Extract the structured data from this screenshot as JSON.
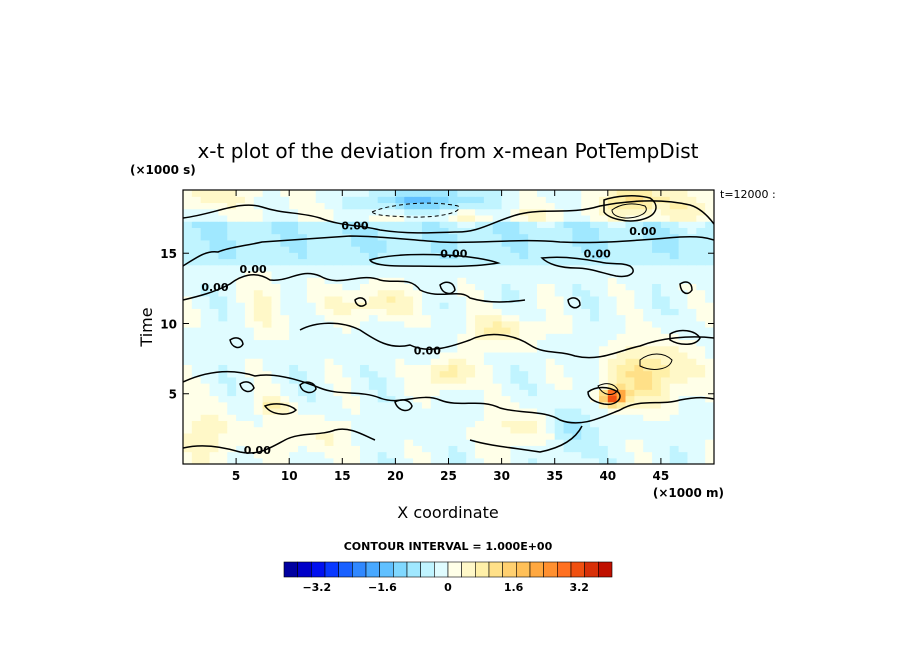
{
  "chart_data": {
    "type": "heatmap",
    "title": "x-t plot of the deviation from x-mean PotTempDist",
    "xlabel": "X coordinate",
    "ylabel": "Time",
    "x_units": "(×1000 m)",
    "y_units": "(×1000 s)",
    "corner_note": "t=12000 :",
    "contour_interval_text": "CONTOUR INTERVAL = 1.000E+00",
    "xlim": [
      0,
      50
    ],
    "ylim": [
      0,
      19.5
    ],
    "xticks": [
      5,
      10,
      15,
      20,
      25,
      30,
      35,
      40,
      45
    ],
    "yticks": [
      5,
      10,
      15
    ],
    "contour_labels": [
      {
        "text": "0.00",
        "x": 16.2,
        "y": 16.7
      },
      {
        "text": "0.00",
        "x": 25.5,
        "y": 14.7
      },
      {
        "text": "0.00",
        "x": 39.0,
        "y": 14.7
      },
      {
        "text": "0.00",
        "x": 43.3,
        "y": 16.3
      },
      {
        "text": "0.00",
        "x": 6.6,
        "y": 13.6
      },
      {
        "text": "0.00",
        "x": 3.0,
        "y": 12.3
      },
      {
        "text": "0.00",
        "x": 23.0,
        "y": 7.8
      },
      {
        "text": "0.00",
        "x": 7.0,
        "y": 0.7
      }
    ],
    "colorbar": {
      "min": -4.0,
      "max": 4.0,
      "tick_values": [
        -3.2,
        -1.6,
        0,
        1.6,
        3.2
      ],
      "tick_labels": [
        "−3.2",
        "−1.6",
        "0",
        "1.6",
        "3.2"
      ],
      "colors": [
        "#0000a0",
        "#0000c8",
        "#0010f0",
        "#0838ff",
        "#1860ff",
        "#3088ff",
        "#48a8ff",
        "#60c0ff",
        "#80d8ff",
        "#a0e8ff",
        "#c0f4ff",
        "#e0fcff",
        "#ffffe8",
        "#fff8c8",
        "#fff0a8",
        "#ffe088",
        "#ffd070",
        "#ffc058",
        "#ffa840",
        "#ff9030",
        "#ff7020",
        "#f05010",
        "#d83008",
        "#c01000"
      ]
    },
    "field_features": [
      {
        "kind": "band",
        "y_min": 14.0,
        "y_max": 17.5,
        "value": -0.6
      },
      {
        "kind": "band",
        "y_min": 0.0,
        "y_max": 14.0,
        "value": -0.15
      },
      {
        "kind": "blob",
        "x": 23.0,
        "y": 18.7,
        "sx": 6.0,
        "sy": 0.9,
        "value": -1.4
      },
      {
        "kind": "blob",
        "x": 42.5,
        "y": 18.8,
        "sx": 2.5,
        "sy": 1.0,
        "value": 1.2
      },
      {
        "kind": "blob",
        "x": 47.5,
        "y": 18.5,
        "sx": 3.0,
        "sy": 1.2,
        "value": 0.5
      },
      {
        "kind": "blob",
        "x": 2.0,
        "y": 19.0,
        "sx": 4.0,
        "sy": 0.8,
        "value": 0.5
      },
      {
        "kind": "blob",
        "x": 28.0,
        "y": 17.8,
        "sx": 10.0,
        "sy": 0.7,
        "value": 0.35
      },
      {
        "kind": "blob",
        "x": 18.0,
        "y": 11.5,
        "sx": 4.0,
        "sy": 1.2,
        "value": 0.8
      },
      {
        "kind": "blob",
        "x": 30.0,
        "y": 9.5,
        "sx": 3.5,
        "sy": 1.2,
        "value": 0.8
      },
      {
        "kind": "blob",
        "x": 25.0,
        "y": 6.5,
        "sx": 2.0,
        "sy": 1.0,
        "value": 1.2
      },
      {
        "kind": "blob",
        "x": 44.0,
        "y": 6.5,
        "sx": 4.0,
        "sy": 2.2,
        "value": 1.2
      },
      {
        "kind": "blob",
        "x": 40.5,
        "y": 4.8,
        "sx": 1.2,
        "sy": 0.6,
        "value": 3.4
      },
      {
        "kind": "blob",
        "x": 2.5,
        "y": 2.0,
        "sx": 3.0,
        "sy": 2.0,
        "value": 0.7
      },
      {
        "kind": "blob",
        "x": 12.0,
        "y": 2.0,
        "sx": 4.0,
        "sy": 1.5,
        "value": 0.5
      },
      {
        "kind": "blob",
        "x": 32.0,
        "y": 2.5,
        "sx": 4.0,
        "sy": 1.5,
        "value": 0.6
      },
      {
        "kind": "blob",
        "x": 36.5,
        "y": 2.5,
        "sx": 2.0,
        "sy": 2.0,
        "value": -0.8
      },
      {
        "kind": "blob",
        "x": 8.0,
        "y": 11.5,
        "sx": 2.0,
        "sy": 2.5,
        "value": 0.5
      },
      {
        "kind": "blob",
        "x": 8.5,
        "y": 4.2,
        "sx": 1.5,
        "sy": 0.6,
        "value": 0.9
      }
    ]
  }
}
